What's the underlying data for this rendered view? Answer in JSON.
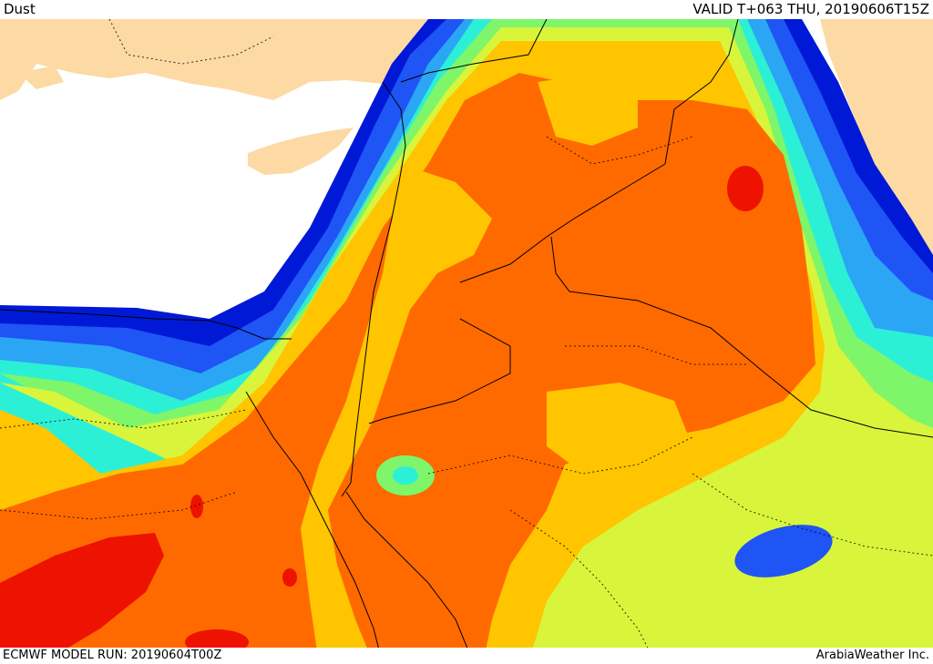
{
  "header": {
    "product_label": "Dust",
    "valid_time": "VALID T+063 THU, 20190606T15Z"
  },
  "footer": {
    "model_run": "ECMWF MODEL RUN: 20190604T00Z",
    "credit": "ArabiaWeather Inc."
  },
  "palette": {
    "sea": "#ffffff",
    "land": "#fdd9a4",
    "dark_blue": "#0019d6",
    "blue": "#1f54f5",
    "light_blue": "#2aa6f5",
    "cyan": "#2cf0d6",
    "green": "#7ff56a",
    "yellow_green": "#d8f53b",
    "yellow": "#ffc500",
    "orange": "#ff6a00",
    "red": "#ee1200"
  }
}
